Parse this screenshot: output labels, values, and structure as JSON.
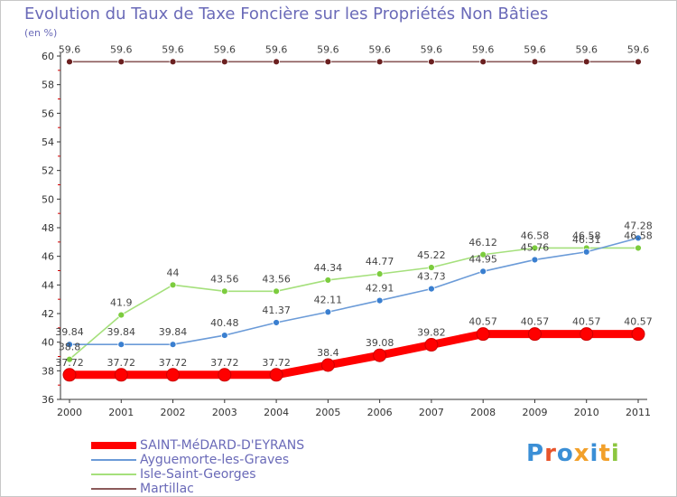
{
  "title": "Evolution du Taux de Taxe Foncière sur les Propriétés Non Bâties",
  "unit_label": "(en %)",
  "logo": {
    "text": "Proxiti",
    "colors": [
      "#3b8fd6",
      "#e8542a",
      "#3b8fd6",
      "#f2a02a",
      "#3b8fd6",
      "#f2a02a",
      "#8cc63f"
    ]
  },
  "chart_data": {
    "type": "line",
    "title": "Evolution du Taux de Taxe Foncière sur les Propriétés Non Bâties",
    "ylabel": "(en %)",
    "xlabel": "",
    "x": [
      "2000",
      "2001",
      "2002",
      "2003",
      "2004",
      "2005",
      "2006",
      "2007",
      "2008",
      "2009",
      "2010",
      "2011"
    ],
    "ylim": [
      36,
      60
    ],
    "yticks": [
      36,
      38,
      40,
      42,
      44,
      46,
      48,
      50,
      52,
      54,
      56,
      58,
      60
    ],
    "grid": false,
    "legend": "bottom-left",
    "series": [
      {
        "name": "SAINT-MéDARD-D'EYRANS",
        "color": "#ff0000",
        "style": "thick",
        "values": [
          37.72,
          37.72,
          37.72,
          37.72,
          37.72,
          38.4,
          39.08,
          39.82,
          40.57,
          40.57,
          40.57,
          40.57
        ],
        "labels": [
          "37.72",
          "37.72",
          "37.72",
          "37.72",
          "37.72",
          "38.4",
          "39.08",
          "39.82",
          "40.57",
          "40.57",
          "40.57",
          "40.57"
        ]
      },
      {
        "name": "Ayguemorte-les-Graves",
        "color": "#6b9bd8",
        "marker": "#3a7fd0",
        "style": "thin",
        "values": [
          39.84,
          39.84,
          39.84,
          40.48,
          41.37,
          42.11,
          42.91,
          43.73,
          44.95,
          45.76,
          46.31,
          47.28
        ],
        "labels": [
          "39.84",
          "39.84",
          "39.84",
          "40.48",
          "41.37",
          "42.11",
          "42.91",
          "43.73",
          "44.95",
          "45.76",
          "46.31",
          "47.28"
        ]
      },
      {
        "name": "Isle-Saint-Georges",
        "color": "#a5e07c",
        "marker": "#7ccc3e",
        "style": "thin",
        "values": [
          38.8,
          41.9,
          44,
          43.56,
          43.56,
          44.34,
          44.77,
          45.22,
          46.12,
          46.58,
          46.58,
          46.58
        ],
        "labels": [
          "38.8",
          "41.9",
          "44",
          "43.56",
          "43.56",
          "44.34",
          "44.77",
          "45.22",
          "46.12",
          "46.58",
          "46.58",
          "46.58"
        ]
      },
      {
        "name": "Martillac",
        "color": "#8b5a5a",
        "marker": "#6b2020",
        "style": "thin",
        "values": [
          59.6,
          59.6,
          59.6,
          59.6,
          59.6,
          59.6,
          59.6,
          59.6,
          59.6,
          59.6,
          59.6,
          59.6
        ],
        "labels": [
          "59.6",
          "59.6",
          "59.6",
          "59.6",
          "59.6",
          "59.6",
          "59.6",
          "59.6",
          "59.6",
          "59.6",
          "59.6",
          "59.6"
        ]
      }
    ]
  }
}
